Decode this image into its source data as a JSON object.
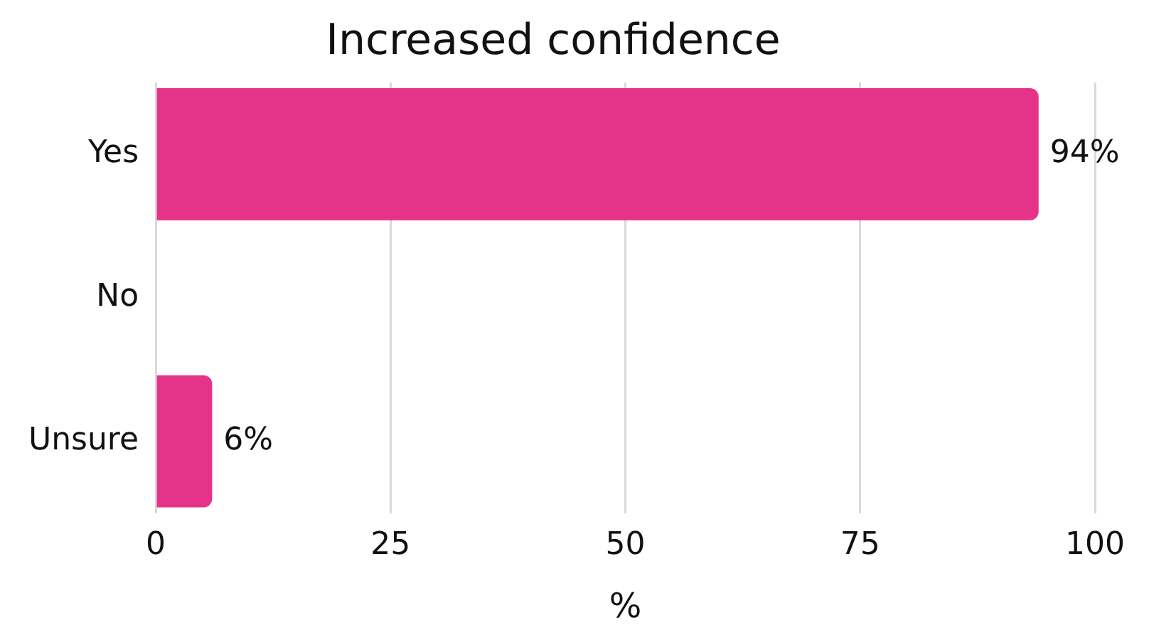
{
  "chart_data": {
    "type": "bar",
    "title": "Increased confidence",
    "xlabel": "%",
    "orientation": "horizontal",
    "categories": [
      "Yes",
      "No",
      "Unsure"
    ],
    "values": [
      94,
      0,
      6
    ],
    "color": "#e5338a",
    "value_labels": [
      "94%",
      null,
      "6%"
    ],
    "xlim": [
      0,
      100
    ],
    "xticks": [
      0,
      25,
      50,
      75,
      100
    ],
    "grid": "x",
    "legend": false
  }
}
